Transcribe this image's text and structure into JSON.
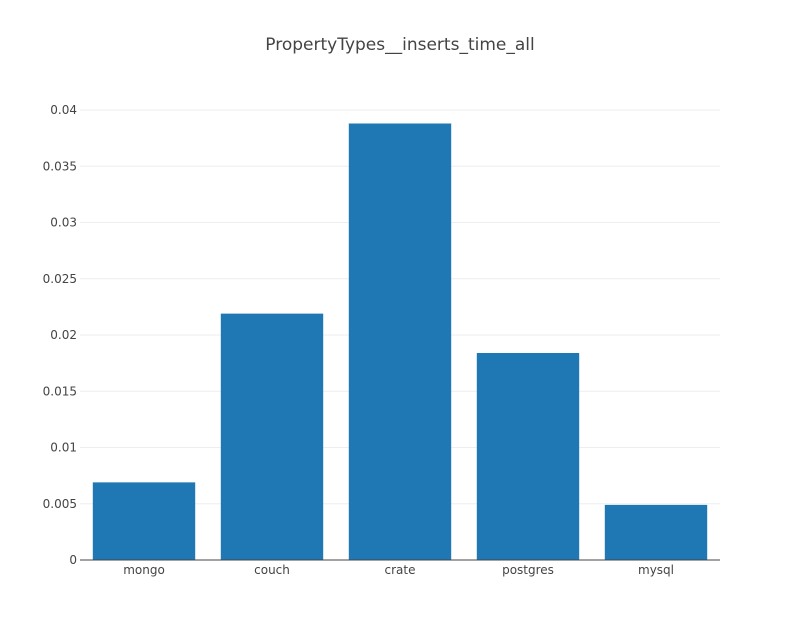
{
  "chart_data": {
    "type": "bar",
    "title": "PropertyTypes__inserts_time_all",
    "xlabel": "",
    "ylabel": "",
    "categories": [
      "mongo",
      "couch",
      "crate",
      "postgres",
      "mysql"
    ],
    "values": [
      0.0069,
      0.0219,
      0.0388,
      0.0184,
      0.0049
    ],
    "ylim": [
      0,
      0.04
    ],
    "yticks": [
      0,
      0.005,
      0.01,
      0.015,
      0.02,
      0.025,
      0.03,
      0.035,
      0.04
    ],
    "ytick_labels": [
      "0",
      "0.005",
      "0.01",
      "0.015",
      "0.02",
      "0.025",
      "0.03",
      "0.035",
      "0.04"
    ],
    "grid": true,
    "legend": "none",
    "colors": {
      "bar": "#1f77b4",
      "grid": "#eeeeee",
      "axis": "#444444",
      "text": "#444444"
    }
  }
}
